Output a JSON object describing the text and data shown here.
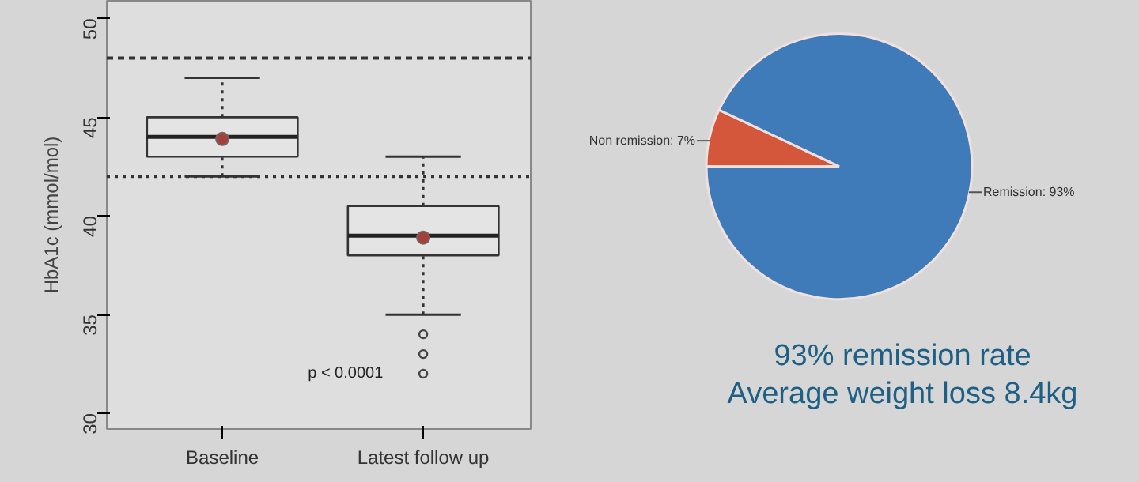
{
  "chart_data": [
    {
      "type": "box",
      "ylabel": "HbA1c (mmol/mol)",
      "categories": [
        "Baseline",
        "Latest follow up"
      ],
      "boxes": [
        {
          "low": 42,
          "q1": 43,
          "median": 44,
          "q3": 45,
          "high": 47,
          "mean": 43.9
        },
        {
          "low": 35,
          "q1": 38,
          "median": 39,
          "q3": 40.5,
          "high": 43,
          "mean": 38.9,
          "outliers": [
            34,
            33,
            32
          ]
        }
      ],
      "ylim": [
        29.2,
        50.9
      ],
      "yticks": [
        30,
        35,
        40,
        45,
        50
      ],
      "ref_lines": [
        {
          "axis": "y",
          "value": 48,
          "line_style": "dashed"
        },
        {
          "axis": "y",
          "value": 42,
          "line_style": "dotted"
        }
      ],
      "annotations": [
        "p < 0.0001"
      ],
      "grid": false
    },
    {
      "type": "pie",
      "categories": [
        "Non remission: 7%",
        "Remission: 93%"
      ],
      "values": [
        7,
        93
      ],
      "colors": [
        "#d5573b",
        "#3f7bb8"
      ],
      "annotations": [
        "93% remission rate",
        "Average weight loss 8.4kg"
      ]
    }
  ]
}
